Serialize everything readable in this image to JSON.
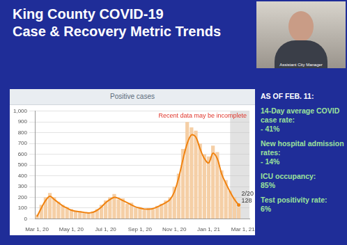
{
  "header": {
    "title_lines": [
      "King County COVID-19",
      "Case & Recovery Metric Trends"
    ]
  },
  "presenter": {
    "caption": "Assistant City Manager"
  },
  "metrics": {
    "heading": "AS OF FEB. 11:",
    "items": [
      {
        "label": "14-Day average COVID case rate:",
        "value": "- 41%"
      },
      {
        "label": "New hospital admission rates:",
        "value": "- 14%"
      },
      {
        "label": "ICU occupancy:",
        "value": "85%"
      },
      {
        "label": "Test positivity rate:",
        "value": "6%"
      }
    ]
  },
  "chart_data": {
    "type": "bar",
    "title": "Positive cases",
    "annotation": "Recent data may be incomplete",
    "categories": [
      "Mar 1, 20",
      null,
      null,
      null,
      null,
      null,
      null,
      null,
      "May 1, 20",
      null,
      null,
      null,
      null,
      null,
      null,
      null,
      "Jul 1, 20",
      null,
      null,
      null,
      null,
      null,
      null,
      null,
      "Sep 1, 20",
      null,
      null,
      null,
      null,
      null,
      null,
      null,
      "Nov 1, 20",
      null,
      null,
      null,
      null,
      null,
      null,
      null,
      "Jan 1, 21",
      null,
      null,
      null,
      null,
      null,
      null,
      null,
      "Mar 1, 21",
      null
    ],
    "series": [
      {
        "type": "bar",
        "color": "#f5cfa6",
        "values": [
          40,
          130,
          200,
          240,
          200,
          160,
          130,
          110,
          90,
          75,
          70,
          55,
          60,
          70,
          90,
          130,
          170,
          200,
          230,
          180,
          190,
          140,
          150,
          100,
          110,
          80,
          100,
          90,
          120,
          140,
          170,
          200,
          300,
          420,
          650,
          900,
          850,
          820,
          700,
          600,
          580,
          680,
          620,
          450,
          360,
          260,
          200,
          110,
          null,
          null
        ]
      },
      {
        "type": "line",
        "color": "#f0820f",
        "values": [
          20,
          100,
          170,
          210,
          180,
          150,
          120,
          100,
          80,
          70,
          65,
          60,
          55,
          60,
          80,
          110,
          150,
          180,
          200,
          190,
          170,
          150,
          130,
          110,
          100,
          90,
          90,
          95,
          110,
          130,
          150,
          180,
          250,
          380,
          550,
          700,
          780,
          760,
          650,
          560,
          520,
          610,
          560,
          420,
          330,
          250,
          180,
          128,
          null,
          null
        ]
      }
    ],
    "ylim": [
      0,
      1000
    ],
    "yticks": [
      0,
      100,
      200,
      300,
      400,
      500,
      600,
      700,
      800,
      900,
      {
        "value": 1000,
        "label": "1,000"
      }
    ],
    "grid": true,
    "callout": {
      "label": "2/20",
      "value": 128
    }
  }
}
